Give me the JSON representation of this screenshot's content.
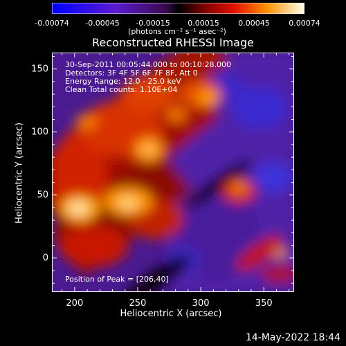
{
  "colorbar": {
    "tick_labels": [
      "-0.00074",
      "-0.00045",
      "-0.00015",
      "0.00015",
      "0.00045",
      "0.00074"
    ],
    "unit_label": "(photons cm⁻² s⁻¹ asec⁻²)",
    "range": [
      -0.00074,
      0.00074
    ]
  },
  "chart_data": {
    "type": "heatmap",
    "title": "Reconstructed RHESSI Image",
    "xlabel": "Heliocentric X (arcsec)",
    "ylabel": "Heliocentric Y (arcsec)",
    "xlim": [
      182,
      374
    ],
    "ylim": [
      -27,
      163
    ],
    "x_ticks": [
      200,
      250,
      300,
      350
    ],
    "y_ticks": [
      0,
      50,
      100,
      150
    ],
    "annotations": [
      "30-Sep-2011 00:05:44.000 to 00:10:28.000",
      "Detectors: 3F 4F 5F 6F 7F 8F, Att 0",
      "Energy Range: 12.0 - 25.0 keV",
      "Clean    Total counts: 1.10E+04"
    ],
    "peak_label": "Position of Peak = [206,40]",
    "peak": [
      206,
      40
    ]
  },
  "footer": {
    "date": "14-May-2022 18:44"
  }
}
